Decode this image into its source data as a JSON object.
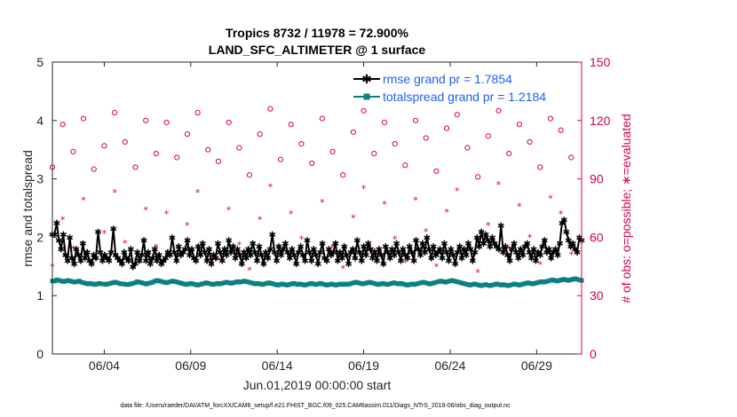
{
  "chart_data": {
    "type": "line",
    "title": "Tropics 8732 / 11978 = 72.900%",
    "subtitle": "LAND_SFC_ALTIMETER @ 1 surface",
    "xlabel": "Jun.01,2019 00:00:00 start",
    "ylabel": "rmse and totalspread",
    "ylabel_right": "# of obs: o=possible; ∗=evaluated",
    "xlim": [
      0,
      30.6
    ],
    "ylim": [
      0,
      5
    ],
    "ylim_right": [
      0,
      150
    ],
    "x_ticks": [
      {
        "value": 3.0,
        "label": "06/04"
      },
      {
        "value": 8.0,
        "label": "06/09"
      },
      {
        "value": 13.0,
        "label": "06/14"
      },
      {
        "value": 18.0,
        "label": "06/19"
      },
      {
        "value": 23.0,
        "label": "06/24"
      },
      {
        "value": 28.0,
        "label": "06/29"
      }
    ],
    "y_ticks": [
      "0",
      "1",
      "2",
      "3",
      "4",
      "5"
    ],
    "y_ticks_right": [
      "0",
      "30",
      "60",
      "90",
      "120",
      "150"
    ],
    "legend": [
      {
        "label": "rmse grand pr = 1.7854",
        "color": "#000000"
      },
      {
        "label": "totalspread grand pr = 1.2184",
        "color": "#0a8080"
      }
    ],
    "series": [
      {
        "name": "rmse",
        "color": "#000000",
        "values": [
          2.05,
          2.05,
          2.25,
          1.95,
          1.8,
          2.05,
          1.7,
          1.6,
          2.0,
          1.65,
          1.55,
          1.8,
          1.7,
          1.6,
          1.9,
          1.65,
          1.75,
          1.6,
          1.55,
          1.7,
          1.65,
          2.1,
          1.75,
          1.6,
          1.7,
          1.65,
          1.6,
          1.75,
          2.15,
          1.7,
          1.65,
          1.6,
          1.55,
          1.75,
          1.65,
          1.6,
          1.8,
          1.5,
          1.55,
          1.75,
          1.6,
          1.7,
          1.95,
          1.6,
          1.75,
          1.55,
          1.65,
          1.8,
          1.6,
          1.7,
          1.55,
          1.6,
          1.65,
          1.75,
          1.7,
          2.0,
          1.75,
          1.6,
          1.85,
          1.7,
          1.75,
          1.8,
          1.95,
          1.7,
          1.8,
          1.65,
          1.6,
          1.85,
          1.7,
          1.9,
          1.75,
          1.6,
          1.8,
          1.55,
          1.7,
          1.65,
          1.9,
          1.75,
          1.6,
          1.8,
          1.7,
          1.95,
          1.75,
          1.85,
          1.65,
          1.8,
          1.7,
          1.55,
          1.75,
          1.65,
          1.8,
          1.7,
          1.9,
          1.75,
          1.6,
          1.85,
          1.7,
          1.55,
          1.75,
          1.65,
          1.8,
          2.05,
          1.75,
          1.6,
          1.85,
          1.7,
          1.8,
          1.9,
          1.75,
          1.65,
          1.8,
          1.7,
          1.55,
          1.75,
          1.85,
          1.7,
          1.6,
          1.95,
          1.75,
          1.6,
          1.8,
          1.7,
          1.55,
          1.75,
          1.9,
          1.65,
          1.6,
          1.8,
          1.7,
          1.75,
          1.9,
          1.6,
          1.75,
          1.65,
          1.85,
          1.7,
          1.55,
          1.75,
          1.8,
          1.65,
          1.95,
          1.75,
          1.6,
          1.85,
          1.7,
          1.9,
          1.8,
          1.65,
          1.75,
          1.6,
          1.8,
          1.7,
          1.55,
          1.85,
          1.75,
          1.65,
          1.8,
          1.7,
          1.9,
          1.75,
          1.6,
          1.8,
          1.7,
          1.65,
          1.85,
          1.75,
          1.6,
          1.95,
          1.8,
          1.7,
          1.9,
          1.75,
          2.0,
          1.8,
          1.65,
          1.85,
          1.7,
          1.75,
          1.8,
          1.65,
          1.9,
          1.75,
          1.6,
          1.8,
          1.7,
          1.55,
          1.75,
          1.85,
          1.65,
          1.8,
          1.7,
          1.9,
          1.8,
          1.6,
          1.75,
          2.0,
          1.85,
          2.1,
          1.9,
          2.05,
          1.95,
          1.85,
          2.0,
          1.9,
          1.85,
          1.8,
          2.2,
          1.75,
          1.85,
          1.7,
          1.6,
          1.8,
          1.9,
          1.75,
          1.65,
          1.8,
          1.7,
          1.85,
          1.9,
          1.75,
          1.65,
          1.8,
          1.6,
          1.75,
          1.7,
          1.85,
          1.95,
          1.75,
          1.8,
          1.65,
          1.75,
          1.8,
          1.7,
          1.9,
          2.25,
          2.3,
          2.1,
          1.95,
          1.85,
          1.9,
          1.8,
          1.75,
          2.0,
          1.95
        ]
      },
      {
        "name": "totalspread",
        "color": "#0a8080",
        "values": [
          1.25,
          1.25,
          1.27,
          1.26,
          1.25,
          1.24,
          1.25,
          1.26,
          1.25,
          1.24,
          1.23,
          1.24,
          1.25,
          1.23,
          1.22,
          1.21,
          1.2,
          1.21,
          1.2,
          1.19,
          1.2,
          1.21,
          1.2,
          1.2,
          1.19,
          1.2,
          1.21,
          1.22,
          1.23,
          1.22,
          1.21,
          1.2,
          1.2,
          1.19,
          1.19,
          1.2,
          1.21,
          1.22,
          1.24,
          1.23,
          1.22,
          1.21,
          1.2,
          1.21,
          1.22,
          1.23,
          1.25,
          1.26,
          1.25,
          1.24,
          1.23,
          1.22,
          1.23,
          1.24,
          1.25,
          1.24,
          1.23,
          1.22,
          1.21,
          1.2,
          1.19,
          1.2,
          1.21,
          1.2,
          1.19,
          1.18,
          1.19,
          1.2,
          1.21,
          1.22,
          1.21,
          1.2,
          1.19,
          1.2,
          1.21,
          1.2,
          1.21,
          1.22,
          1.23,
          1.22,
          1.21,
          1.22,
          1.23,
          1.24,
          1.23,
          1.24,
          1.25,
          1.24,
          1.23,
          1.22,
          1.21,
          1.2,
          1.21,
          1.2,
          1.19,
          1.2,
          1.21,
          1.22,
          1.21,
          1.2,
          1.19,
          1.18,
          1.19,
          1.2,
          1.19,
          1.18,
          1.19,
          1.2,
          1.21,
          1.2,
          1.19,
          1.2,
          1.19,
          1.18,
          1.19,
          1.2,
          1.21,
          1.2,
          1.19,
          1.2,
          1.21,
          1.2,
          1.19,
          1.18,
          1.19,
          1.2,
          1.19,
          1.18,
          1.19,
          1.2,
          1.19,
          1.2,
          1.19,
          1.2,
          1.21,
          1.22,
          1.23,
          1.22,
          1.21,
          1.2,
          1.21,
          1.22,
          1.23,
          1.22,
          1.21,
          1.2,
          1.19,
          1.2,
          1.21,
          1.2,
          1.19,
          1.2,
          1.21,
          1.22,
          1.21,
          1.2,
          1.21,
          1.2,
          1.19,
          1.18,
          1.19,
          1.2,
          1.19,
          1.2,
          1.21,
          1.22,
          1.23,
          1.22,
          1.21,
          1.2,
          1.21,
          1.22,
          1.23,
          1.24,
          1.25,
          1.24,
          1.23,
          1.24,
          1.25,
          1.26,
          1.25,
          1.24,
          1.23,
          1.22,
          1.21,
          1.2,
          1.19,
          1.18,
          1.19,
          1.2,
          1.19,
          1.18,
          1.17,
          1.18,
          1.19,
          1.18,
          1.17,
          1.18,
          1.19,
          1.2,
          1.19,
          1.18,
          1.19,
          1.18,
          1.17,
          1.18,
          1.19,
          1.2,
          1.19,
          1.18,
          1.19,
          1.2,
          1.21,
          1.22,
          1.21,
          1.2,
          1.21,
          1.22,
          1.23,
          1.24,
          1.23,
          1.24,
          1.25,
          1.26,
          1.27,
          1.26,
          1.25,
          1.26,
          1.27,
          1.28,
          1.27,
          1.26,
          1.27,
          1.28,
          1.29,
          1.28,
          1.27,
          1.26
        ]
      }
    ],
    "scatter_series": [
      {
        "name": "possible",
        "marker": "o",
        "color": "#d6004f",
        "axis": "right",
        "x": [
          0.0,
          0.6,
          1.2,
          1.8,
          2.4,
          3.0,
          3.6,
          4.2,
          4.8,
          5.4,
          6.0,
          6.6,
          7.2,
          7.8,
          8.4,
          9.0,
          9.6,
          10.2,
          10.8,
          11.4,
          12.0,
          12.6,
          13.2,
          13.8,
          14.4,
          15.0,
          15.6,
          16.2,
          16.8,
          17.4,
          18.0,
          18.6,
          19.2,
          19.8,
          20.4,
          21.0,
          21.6,
          22.2,
          22.8,
          23.4,
          24.0,
          24.6,
          25.2,
          25.8,
          26.4,
          27.0,
          27.6,
          28.2,
          28.8,
          29.4,
          30.0
        ],
        "values": [
          96,
          118,
          104,
          121,
          95,
          107,
          124,
          109,
          96,
          120,
          103,
          119,
          101,
          113,
          124,
          105,
          99,
          119,
          106,
          92,
          113,
          126,
          100,
          118,
          108,
          98,
          121,
          104,
          92,
          114,
          125,
          103,
          119,
          108,
          97,
          120,
          111,
          94,
          116,
          123,
          106,
          91,
          112,
          125,
          103,
          118,
          109,
          96,
          121,
          115,
          101
        ]
      },
      {
        "name": "evaluated",
        "marker": "*",
        "color": "#d6004f",
        "axis": "right",
        "x": [
          0.0,
          0.6,
          1.2,
          1.8,
          2.4,
          3.0,
          3.6,
          4.2,
          4.8,
          5.4,
          6.0,
          6.6,
          7.2,
          7.8,
          8.4,
          9.0,
          9.6,
          10.2,
          10.8,
          11.4,
          12.0,
          12.6,
          13.2,
          13.8,
          14.4,
          15.0,
          15.6,
          16.2,
          16.8,
          17.4,
          18.0,
          18.6,
          19.2,
          19.8,
          20.4,
          21.0,
          21.6,
          22.2,
          22.8,
          23.4,
          24.0,
          24.6,
          25.2,
          25.8,
          26.4,
          27.0,
          27.6,
          28.2,
          28.8,
          29.4,
          30.0
        ],
        "values": [
          45,
          69,
          54,
          79,
          50,
          62,
          83,
          57,
          48,
          74,
          55,
          72,
          50,
          66,
          83,
          53,
          48,
          74,
          56,
          43,
          69,
          86,
          52,
          72,
          59,
          47,
          78,
          55,
          44,
          70,
          85,
          53,
          77,
          59,
          47,
          79,
          63,
          45,
          73,
          84,
          56,
          42,
          66,
          87,
          54,
          76,
          60,
          46,
          80,
          72,
          51
        ]
      }
    ],
    "grid": false,
    "legend_position": "top-right"
  },
  "footer": "data file: /Users/raeder/DAI/ATM_forcXX/CAM6_setup/f.e21.FHIST_BGC.f09_025.CAM6assim.011/Diags_NTrS_2019-06/obs_diag_output.nc"
}
